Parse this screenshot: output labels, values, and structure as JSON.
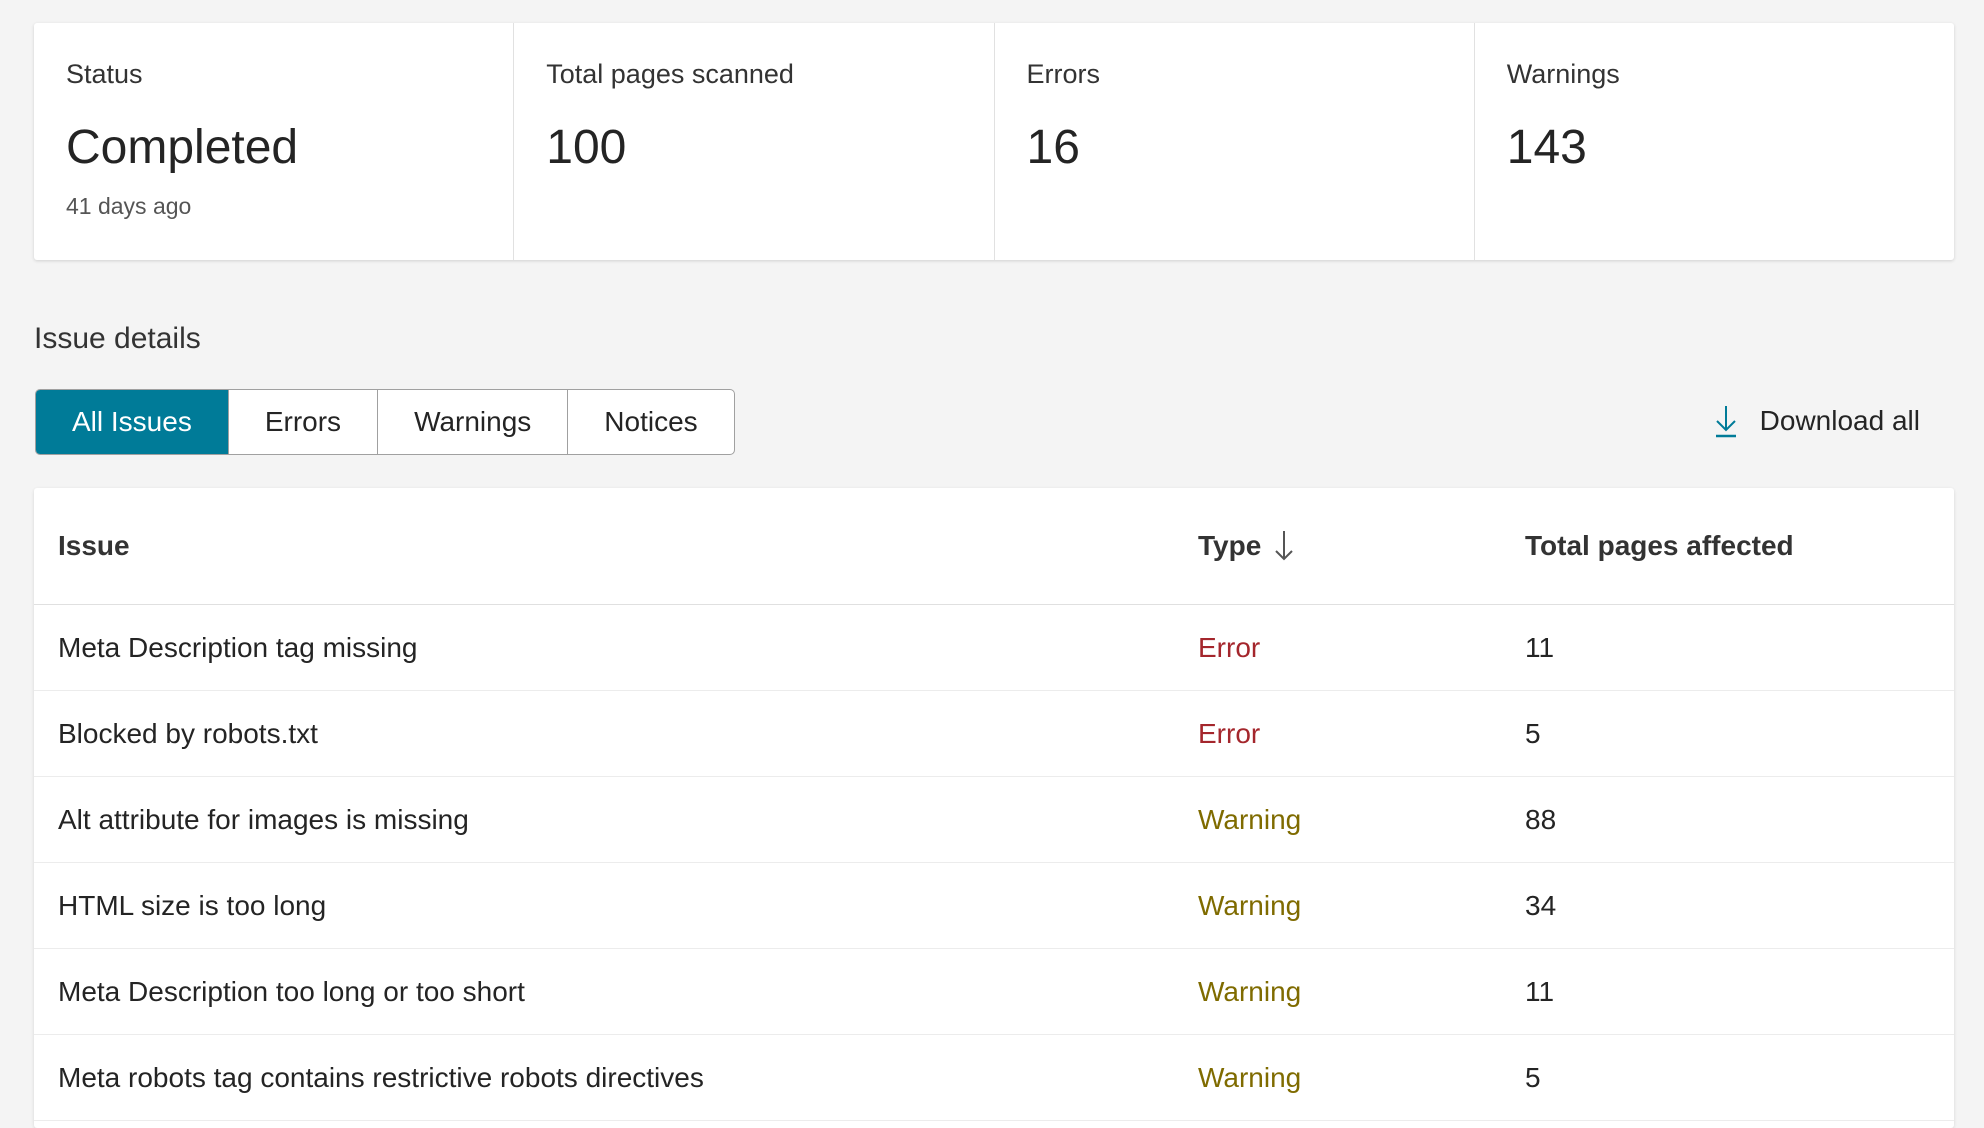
{
  "summary": {
    "status": {
      "label": "Status",
      "value": "Completed",
      "sub": "41 days ago"
    },
    "pages": {
      "label": "Total pages scanned",
      "value": "100"
    },
    "errors": {
      "label": "Errors",
      "value": "16"
    },
    "warnings": {
      "label": "Warnings",
      "value": "143"
    }
  },
  "issue_details": {
    "title": "Issue details",
    "tabs": [
      {
        "label": "All Issues",
        "active": true
      },
      {
        "label": "Errors"
      },
      {
        "label": "Warnings"
      },
      {
        "label": "Notices"
      }
    ],
    "download_label": "Download all",
    "download_icon": "download-arrow-icon",
    "accent": "#007b98"
  },
  "table": {
    "headers": {
      "issue": "Issue",
      "type": "Type",
      "pages": "Total pages affected"
    },
    "sort_icon": "arrow-down-icon",
    "type_colors": {
      "Error": "#a4262c",
      "Warning": "#7f6b00"
    },
    "rows": [
      {
        "issue": "Meta Description tag missing",
        "type": "Error",
        "pages": "11"
      },
      {
        "issue": "Blocked by robots.txt",
        "type": "Error",
        "pages": "5"
      },
      {
        "issue": "Alt attribute for images is missing",
        "type": "Warning",
        "pages": "88"
      },
      {
        "issue": "HTML size is too long",
        "type": "Warning",
        "pages": "34"
      },
      {
        "issue": "Meta Description too long or too short",
        "type": "Warning",
        "pages": "11"
      },
      {
        "issue": "Meta robots tag contains restrictive robots directives",
        "type": "Warning",
        "pages": "5"
      }
    ]
  }
}
